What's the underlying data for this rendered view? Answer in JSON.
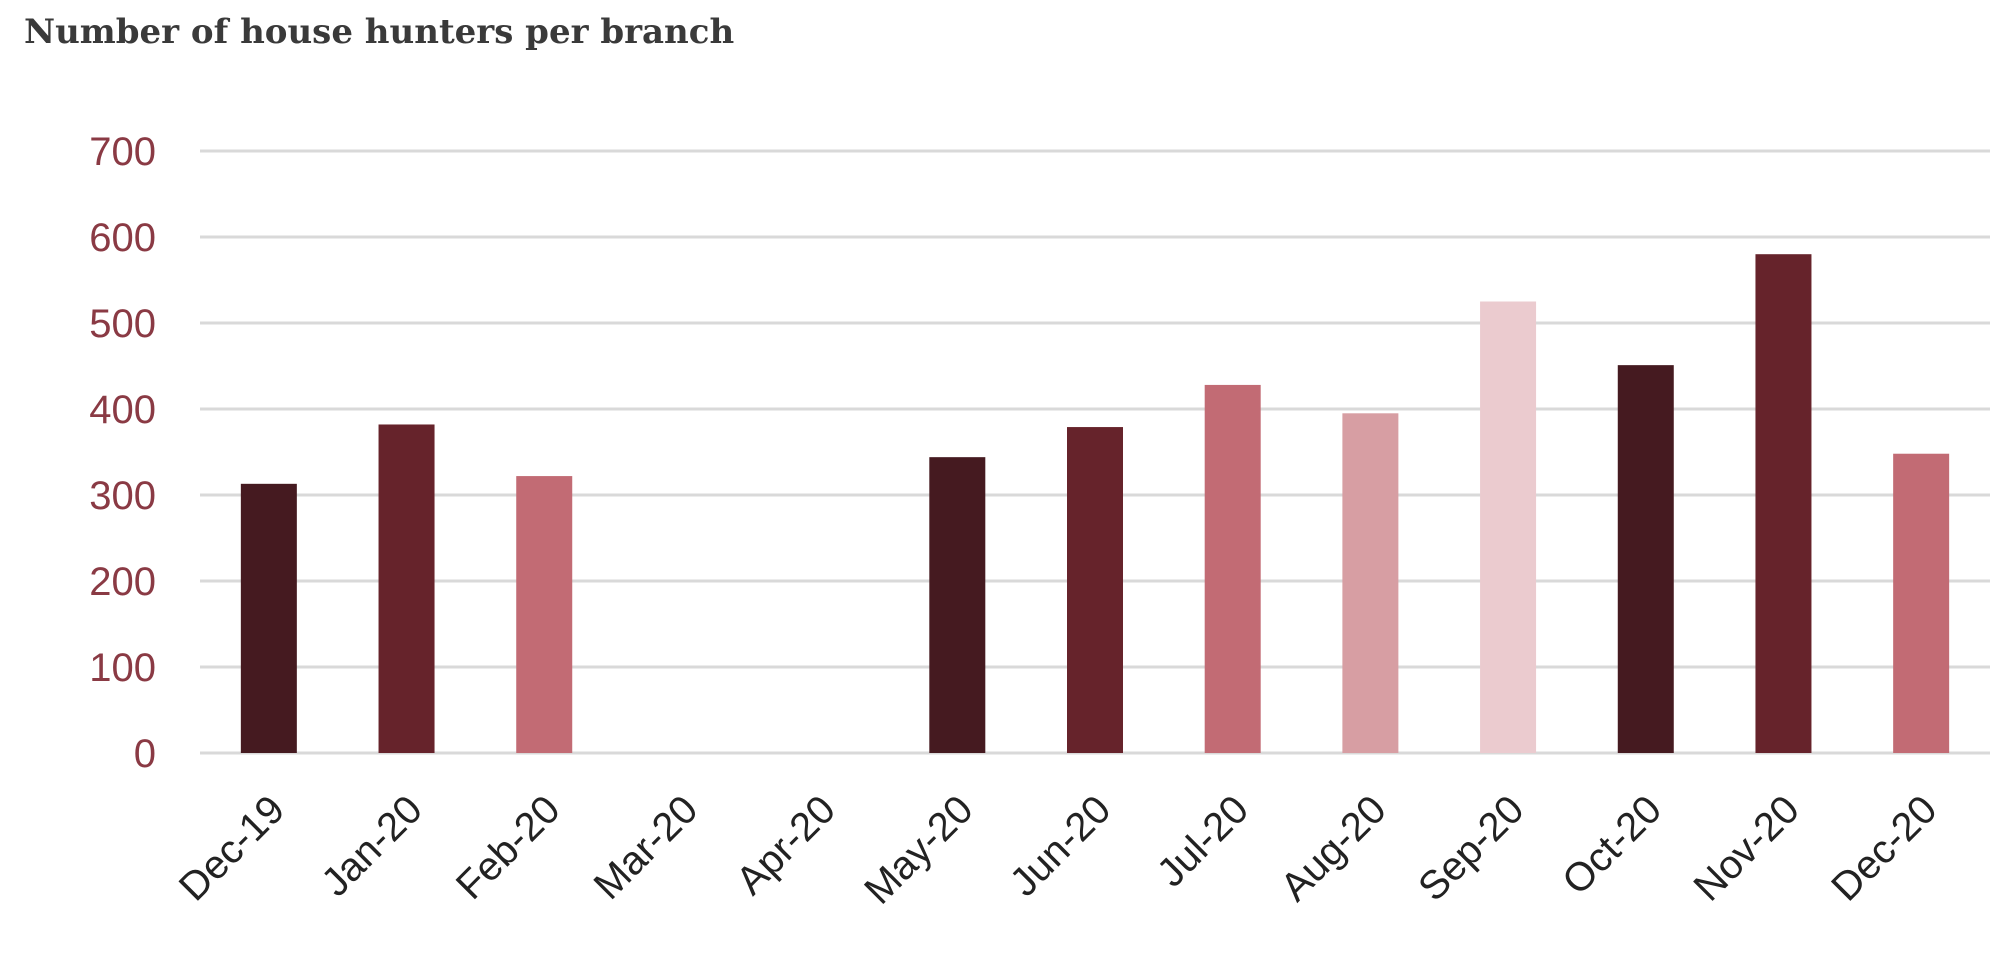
{
  "chart_data": {
    "type": "bar",
    "title": "Number of house hunters per branch",
    "xlabel": "",
    "ylabel": "",
    "ylim": [
      0,
      700
    ],
    "yticks": [
      0,
      100,
      200,
      300,
      400,
      500,
      600,
      700
    ],
    "categories": [
      "Dec-19",
      "Jan-20",
      "Feb-20",
      "Mar-20",
      "Apr-20",
      "May-20",
      "Jun-20",
      "Jul-20",
      "Aug-20",
      "Sep-20",
      "Oct-20",
      "Nov-20",
      "Dec-20"
    ],
    "values": [
      313,
      382,
      322,
      null,
      null,
      344,
      379,
      428,
      395,
      525,
      451,
      580,
      348
    ],
    "bar_colors": [
      "#451a20",
      "#66232b",
      "#c26b74",
      null,
      null,
      "#451a20",
      "#66232b",
      "#c26b74",
      "#d79ea3",
      "#ebcbcf",
      "#451a20",
      "#66232b",
      "#c26b74"
    ],
    "grid": true,
    "gridline_color": "#d9d9d9",
    "tick_color": "#8a3a44"
  }
}
